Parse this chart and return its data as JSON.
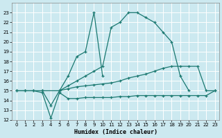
{
  "background_color": "#cce9f0",
  "grid_color": "#ffffff",
  "line_color": "#1a7870",
  "xlabel": "Humidex (Indice chaleur)",
  "ylim": [
    12,
    24
  ],
  "xlim": [
    -0.5,
    23.5
  ],
  "yticks": [
    12,
    13,
    14,
    15,
    16,
    17,
    18,
    19,
    20,
    21,
    22,
    23
  ],
  "xticks": [
    0,
    1,
    2,
    3,
    4,
    5,
    6,
    7,
    8,
    9,
    10,
    11,
    12,
    13,
    14,
    15,
    16,
    17,
    18,
    19,
    20,
    21,
    22,
    23
  ],
  "curves": [
    {
      "x": [
        0,
        1,
        2,
        3,
        5,
        6,
        7,
        8,
        9,
        10,
        11,
        12,
        13,
        14,
        15,
        16,
        17,
        18,
        19,
        20,
        21,
        22,
        23
      ],
      "y": [
        15.0,
        15.0,
        15.0,
        15.0,
        15.0,
        15.2,
        15.4,
        15.5,
        15.6,
        15.7,
        15.8,
        16.0,
        16.3,
        16.5,
        16.7,
        17.0,
        17.3,
        17.5,
        17.5,
        17.5,
        17.5,
        15.0,
        15.0
      ]
    },
    {
      "x": [
        5,
        6,
        7,
        8,
        9,
        10,
        11,
        12,
        13,
        14,
        15,
        16,
        17,
        18,
        19,
        20
      ],
      "y": [
        15.0,
        15.5,
        16.0,
        16.5,
        17.0,
        17.5,
        21.5,
        22.0,
        23.0,
        23.0,
        22.5,
        22.0,
        21.0,
        20.0,
        16.5,
        15.0
      ]
    },
    {
      "x": [
        3,
        4,
        5,
        6,
        7,
        8,
        9,
        10
      ],
      "y": [
        15.0,
        13.5,
        15.0,
        16.5,
        18.5,
        19.0,
        23.0,
        16.5
      ]
    },
    {
      "x": [
        0,
        1,
        2,
        3,
        4,
        5,
        6,
        7,
        8,
        9,
        10,
        11,
        12,
        13,
        14,
        15,
        16,
        17,
        18,
        19,
        20,
        21,
        22,
        23
      ],
      "y": [
        15.0,
        15.0,
        15.0,
        14.8,
        12.2,
        14.8,
        14.2,
        14.2,
        14.3,
        14.3,
        14.3,
        14.3,
        14.4,
        14.4,
        14.5,
        14.5,
        14.5,
        14.5,
        14.5,
        14.5,
        14.5,
        14.5,
        14.5,
        15.0
      ]
    }
  ]
}
